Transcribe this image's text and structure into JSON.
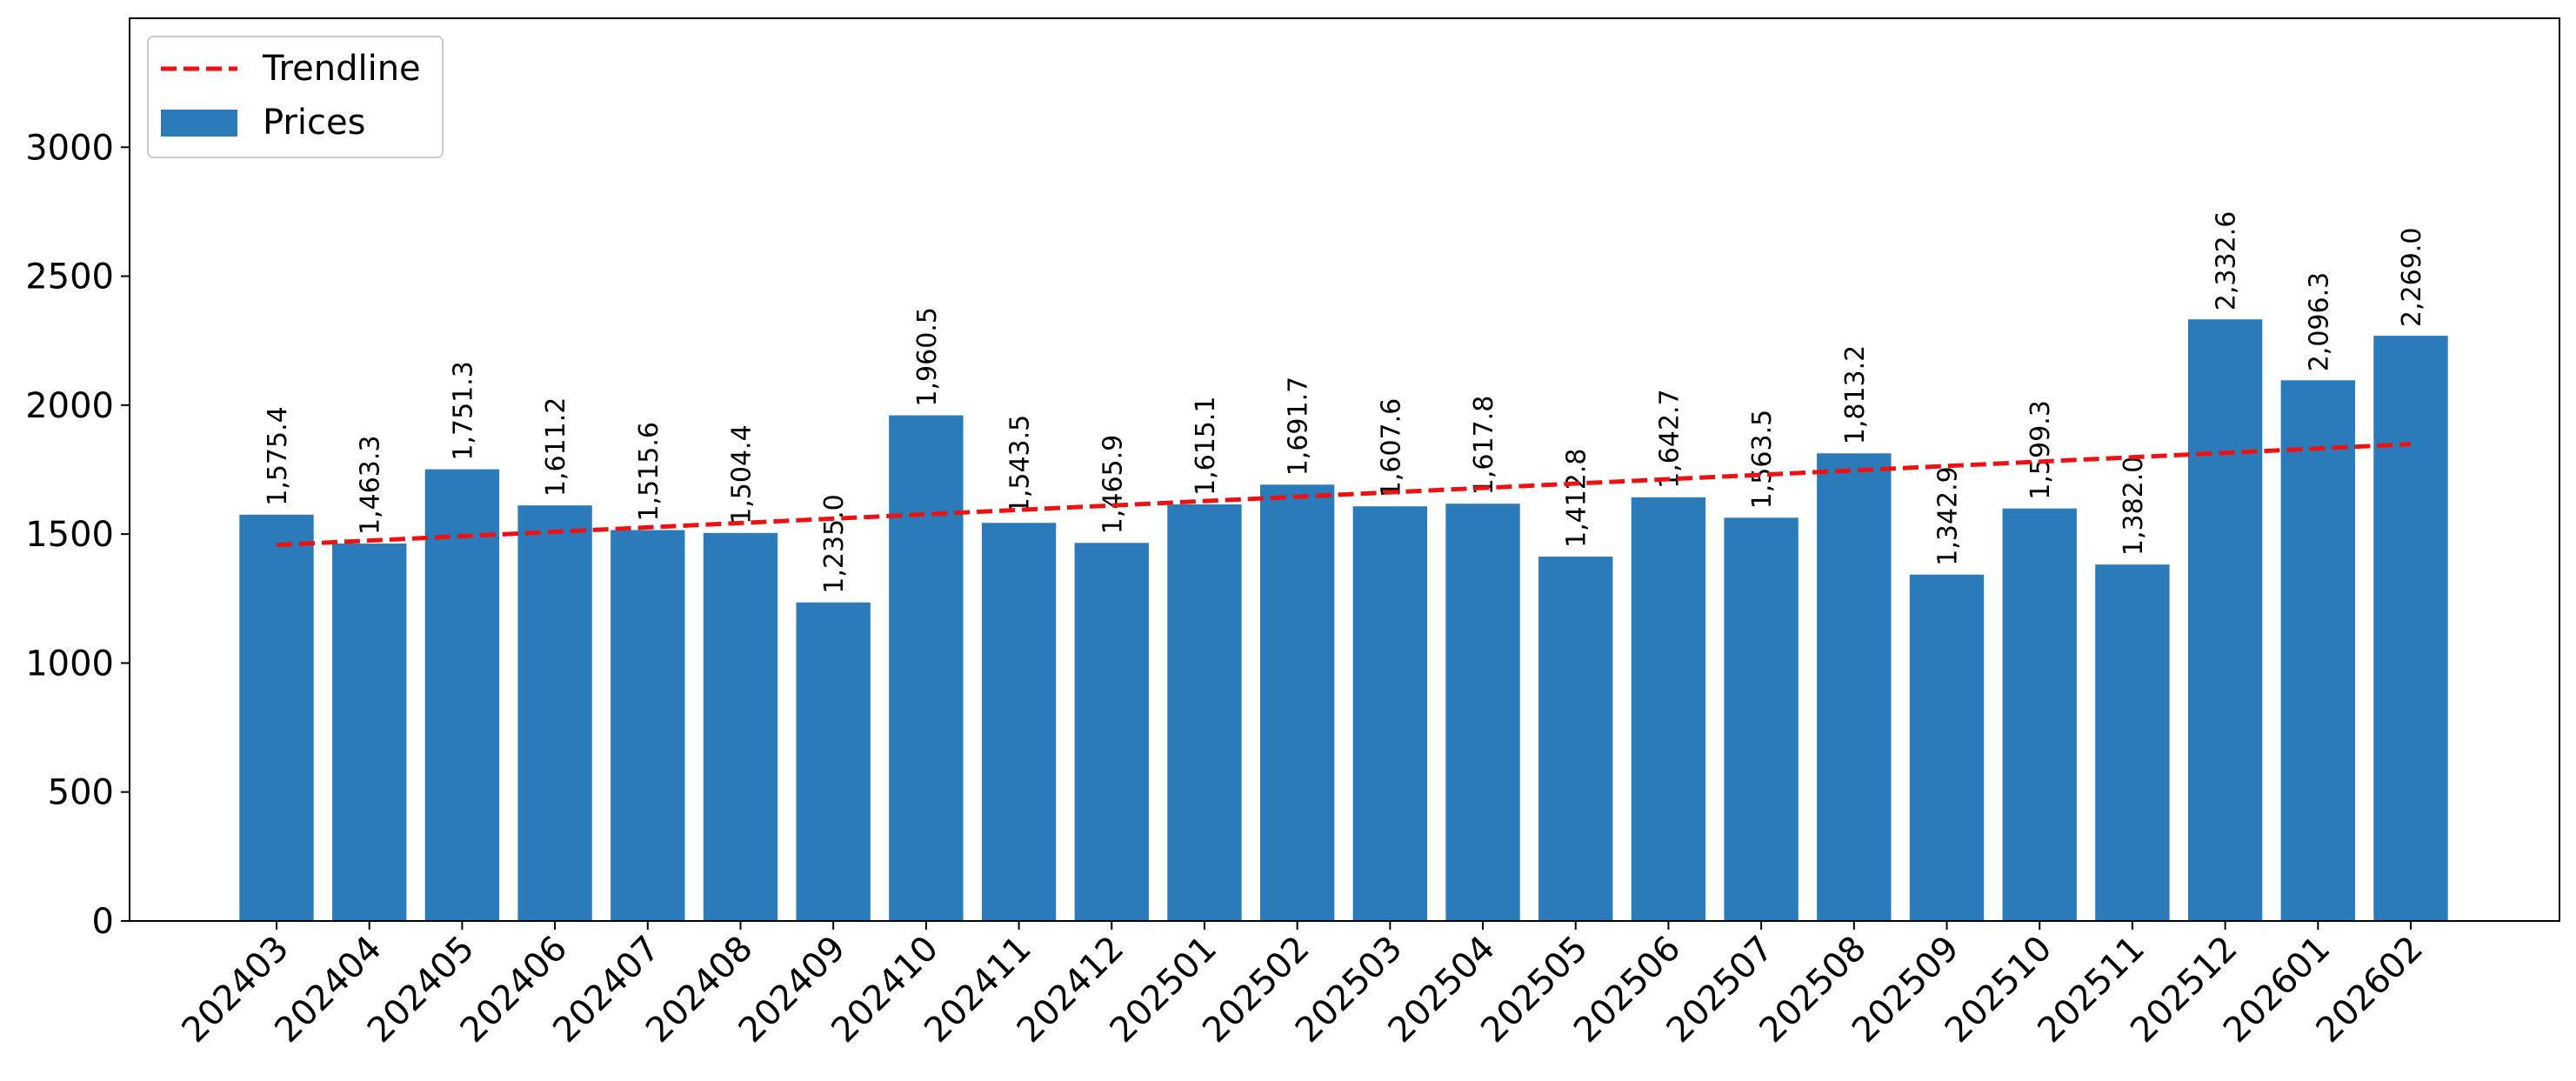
{
  "chart_data": {
    "type": "bar",
    "categories": [
      "202403",
      "202404",
      "202405",
      "202406",
      "202407",
      "202408",
      "202409",
      "202410",
      "202411",
      "202412",
      "202501",
      "202502",
      "202503",
      "202504",
      "202505",
      "202506",
      "202507",
      "202508",
      "202509",
      "202510",
      "202511",
      "202512",
      "202601",
      "202602"
    ],
    "series": [
      {
        "name": "Prices",
        "type": "bar",
        "color": "#2b7bba",
        "values": [
          1575.4,
          1463.3,
          1751.3,
          1611.2,
          1515.6,
          1504.4,
          1235.0,
          1960.5,
          1543.5,
          1465.9,
          1615.1,
          1691.7,
          1607.6,
          1617.8,
          1412.8,
          1642.7,
          1563.5,
          1813.2,
          1342.9,
          1599.3,
          1382.0,
          2332.6,
          2096.3,
          2269.0
        ],
        "data_labels": [
          "1,575.4",
          "1,463.3",
          "1,751.3",
          "1,611.2",
          "1,515.6",
          "1,504.4",
          "1,235.0",
          "1,960.5",
          "1,543.5",
          "1,465.9",
          "1,615.1",
          "1,691.7",
          "1,607.6",
          "1,617.8",
          "1,412.8",
          "1,642.7",
          "1,563.5",
          "1,813.2",
          "1,342.9",
          "1,599.3",
          "1,382.0",
          "2,332.6",
          "2,096.3",
          "2,269.0"
        ]
      },
      {
        "name": "Trendline",
        "type": "line",
        "style": "dashed",
        "color": "#ee1111",
        "values": [
          1458,
          1475,
          1492,
          1509,
          1526,
          1543,
          1560,
          1577,
          1594,
          1611,
          1628,
          1645,
          1662,
          1679,
          1696,
          1713,
          1730,
          1747,
          1764,
          1781,
          1798,
          1815,
          1832,
          1849
        ]
      }
    ],
    "title": "",
    "xlabel": "",
    "ylabel": "",
    "ylim": [
      0,
      3500
    ],
    "yticks": [
      0,
      500,
      1000,
      1500,
      2000,
      2500,
      3000
    ],
    "grid": false,
    "legend": {
      "position": "top-left",
      "entries": [
        "Trendline",
        "Prices"
      ]
    }
  }
}
